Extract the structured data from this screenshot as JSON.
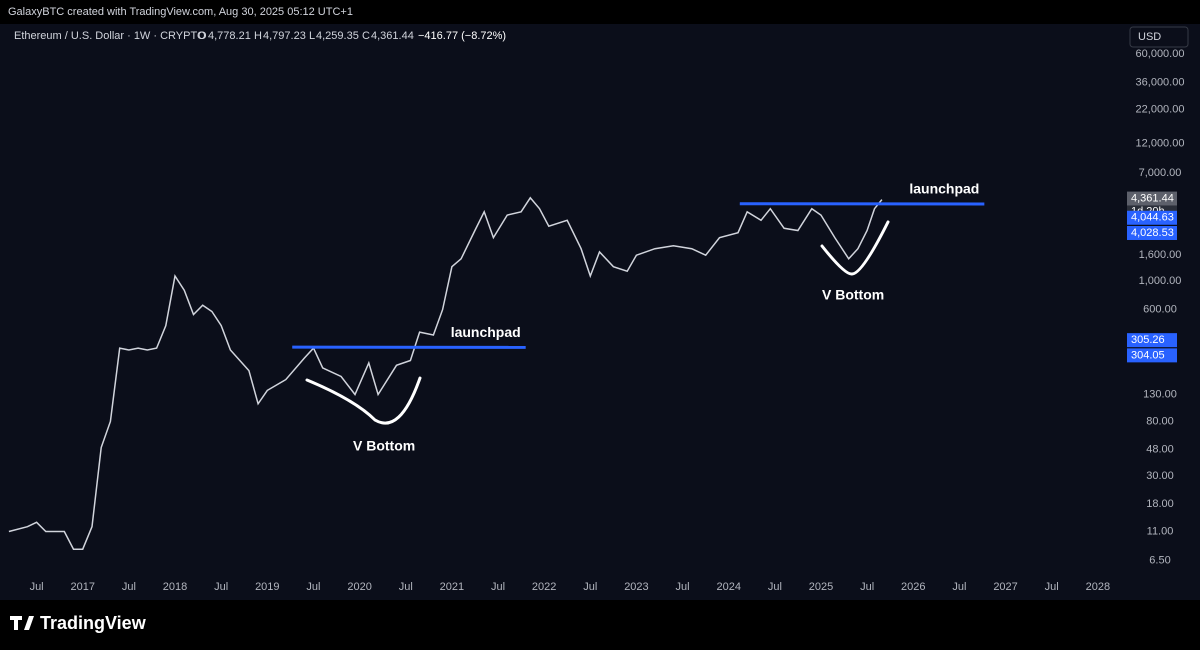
{
  "header": {
    "credit": "GalaxyBTC created with TradingView.com, Aug 30, 2025 05:12 UTC+1",
    "symbol": "Ethereum / U.S. Dollar · 1W · CRYPTO",
    "open": "4,778.21",
    "high": "4,797.23",
    "low": "4,259.35",
    "close": "4,361.44",
    "change": "−416.77 (−8.72%)",
    "currency": "USD",
    "brand": "TradingView"
  },
  "chart_data": {
    "type": "line",
    "log_scale": true,
    "grid": false,
    "color": "#d1d4dc",
    "x": [
      2016.2,
      2016.4,
      2016.5,
      2016.6,
      2016.8,
      2016.9,
      2017.0,
      2017.1,
      2017.2,
      2017.3,
      2017.4,
      2017.5,
      2017.6,
      2017.7,
      2017.8,
      2017.9,
      2018.0,
      2018.1,
      2018.2,
      2018.3,
      2018.4,
      2018.5,
      2018.6,
      2018.8,
      2018.9,
      2019.0,
      2019.2,
      2019.4,
      2019.5,
      2019.6,
      2019.8,
      2019.95,
      2020.1,
      2020.2,
      2020.4,
      2020.55,
      2020.65,
      2020.8,
      2020.9,
      2021.0,
      2021.1,
      2021.25,
      2021.35,
      2021.45,
      2021.6,
      2021.75,
      2021.85,
      2021.95,
      2022.05,
      2022.25,
      2022.4,
      2022.5,
      2022.6,
      2022.75,
      2022.9,
      2023.0,
      2023.2,
      2023.4,
      2023.6,
      2023.75,
      2023.9,
      2024.1,
      2024.2,
      2024.35,
      2024.45,
      2024.6,
      2024.75,
      2024.9,
      2025.0,
      2025.15,
      2025.3,
      2025.4,
      2025.5,
      2025.58,
      2025.66
    ],
    "values": [
      11,
      12,
      13,
      11,
      11,
      8,
      8,
      12,
      50,
      80,
      300,
      290,
      300,
      290,
      300,
      450,
      1100,
      850,
      550,
      650,
      580,
      450,
      290,
      200,
      110,
      140,
      170,
      250,
      300,
      210,
      180,
      130,
      230,
      130,
      220,
      240,
      400,
      380,
      600,
      1300,
      1500,
      2500,
      3500,
      2200,
      3300,
      3500,
      4500,
      3700,
      2700,
      3000,
      1800,
      1100,
      1700,
      1300,
      1200,
      1600,
      1800,
      1900,
      1800,
      1600,
      2200,
      2400,
      3500,
      3000,
      3700,
      2600,
      2500,
      3700,
      3300,
      2200,
      1500,
      1800,
      2500,
      3700,
      4361.44
    ],
    "last_price": {
      "value": 4361.44,
      "label": "4,361.44",
      "countdown": "1d 20h"
    },
    "trend_lines": [
      {
        "label": "launchpad",
        "x": [
          2019.27,
          2021.8
        ],
        "values": [
          305.26,
          304.05
        ],
        "color": "#2962ff"
      },
      {
        "label": "launchpad",
        "x": [
          2024.12,
          2026.77
        ],
        "values": [
          4044.63,
          4028.53
        ],
        "value_labels": [
          "4,044.63",
          "4,028.53"
        ],
        "color": "#2962ff"
      }
    ],
    "annotations": [
      "V Bottom",
      "V Bottom"
    ],
    "xlim": [
      2016.19,
      2028.24
    ],
    "xticks": [
      {
        "value": 2016.5,
        "label": "Jul"
      },
      2017,
      {
        "value": 2017.5,
        "label": "Jul"
      },
      2018,
      {
        "value": 2018.5,
        "label": "Jul"
      },
      2019,
      {
        "value": 2019.5,
        "label": "Jul"
      },
      2020,
      {
        "value": 2020.5,
        "label": "Jul"
      },
      2021,
      {
        "value": 2021.5,
        "label": "Jul"
      },
      2022,
      {
        "value": 2022.5,
        "label": "Jul"
      },
      2023,
      {
        "value": 2023.5,
        "label": "Jul"
      },
      2024,
      {
        "value": 2024.5,
        "label": "Jul"
      },
      2025,
      {
        "value": 2025.5,
        "label": "Jul"
      },
      2026,
      {
        "value": 2026.5,
        "label": "Jul"
      },
      2027,
      {
        "value": 2027.5,
        "label": "Jul"
      },
      2028
    ],
    "ylim": [
      3.7,
      67000
    ],
    "yticks": [
      {
        "value": 6.5,
        "label": "6.50"
      },
      {
        "value": 11,
        "label": "11.00"
      },
      {
        "value": 18,
        "label": "18.00"
      },
      {
        "value": 30,
        "label": "30.00"
      },
      {
        "value": 48,
        "label": "48.00"
      },
      {
        "value": 80,
        "label": "80.00"
      },
      {
        "value": 130,
        "label": "130.00"
      },
      {
        "value": 600,
        "label": "600.00"
      },
      {
        "value": 1000,
        "label": "1,000.00"
      },
      {
        "value": 1600,
        "label": "1,600.00"
      },
      {
        "value": 7000,
        "label": "7,000.00"
      },
      {
        "value": 12000,
        "label": "12,000.00"
      },
      {
        "value": 22000,
        "label": "22,000.00"
      },
      {
        "value": 36000,
        "label": "36,000.00"
      },
      {
        "value": 60000,
        "label": "60,000.00"
      }
    ]
  }
}
